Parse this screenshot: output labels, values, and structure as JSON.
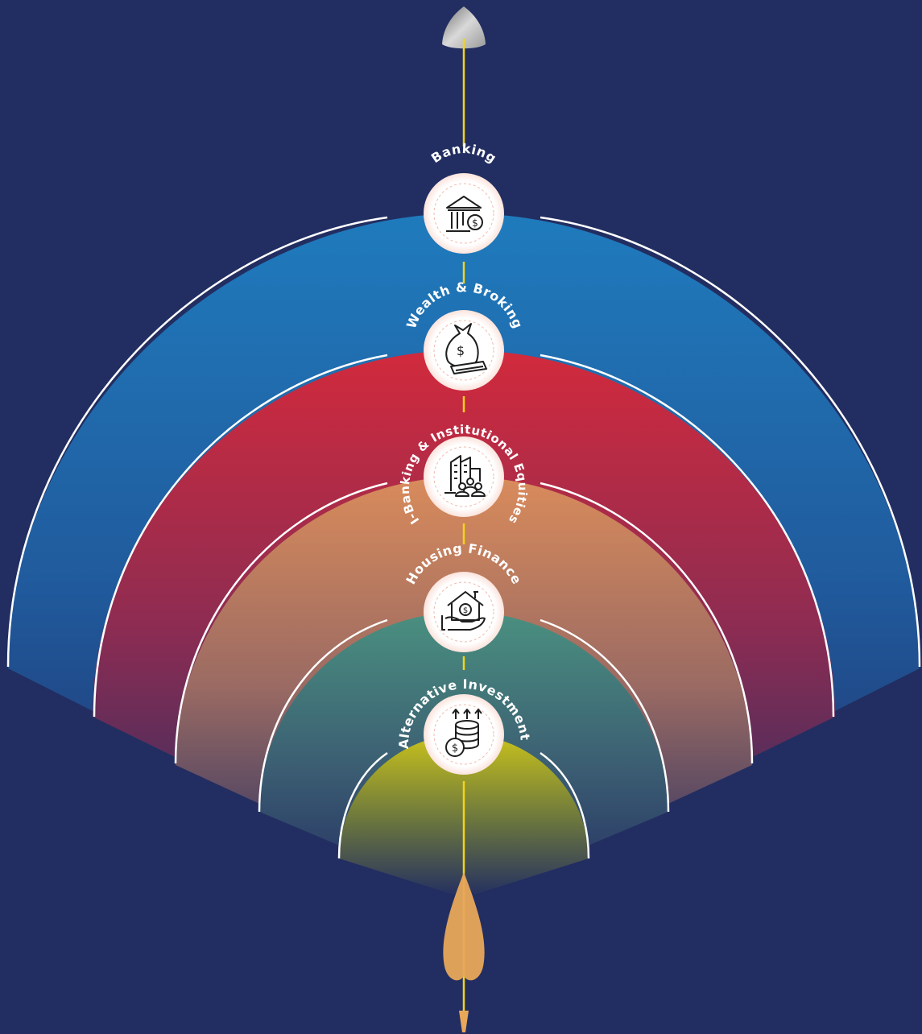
{
  "colors": {
    "background": "#222e61",
    "axis": "#f2d31b",
    "banking": "#1f7bbd",
    "wealth": "#d22a3c",
    "ibanking": "#d98b5b",
    "housing": "#4a9080",
    "alternative": "#c9c21c",
    "arrow_tail": "#e8a85a"
  },
  "layers": [
    {
      "key": "banking",
      "label": "Banking",
      "icon": "bank-icon"
    },
    {
      "key": "wealth",
      "label": "Wealth & Broking",
      "icon": "money-bag-icon"
    },
    {
      "key": "ibanking",
      "label": "I-Banking & Institutional Equities",
      "icon": "office-buildings-icon"
    },
    {
      "key": "housing",
      "label": "Housing Finance",
      "icon": "house-in-hand-icon"
    },
    {
      "key": "alternative",
      "label": "Alternative Investments",
      "icon": "coins-growth-icon"
    }
  ]
}
